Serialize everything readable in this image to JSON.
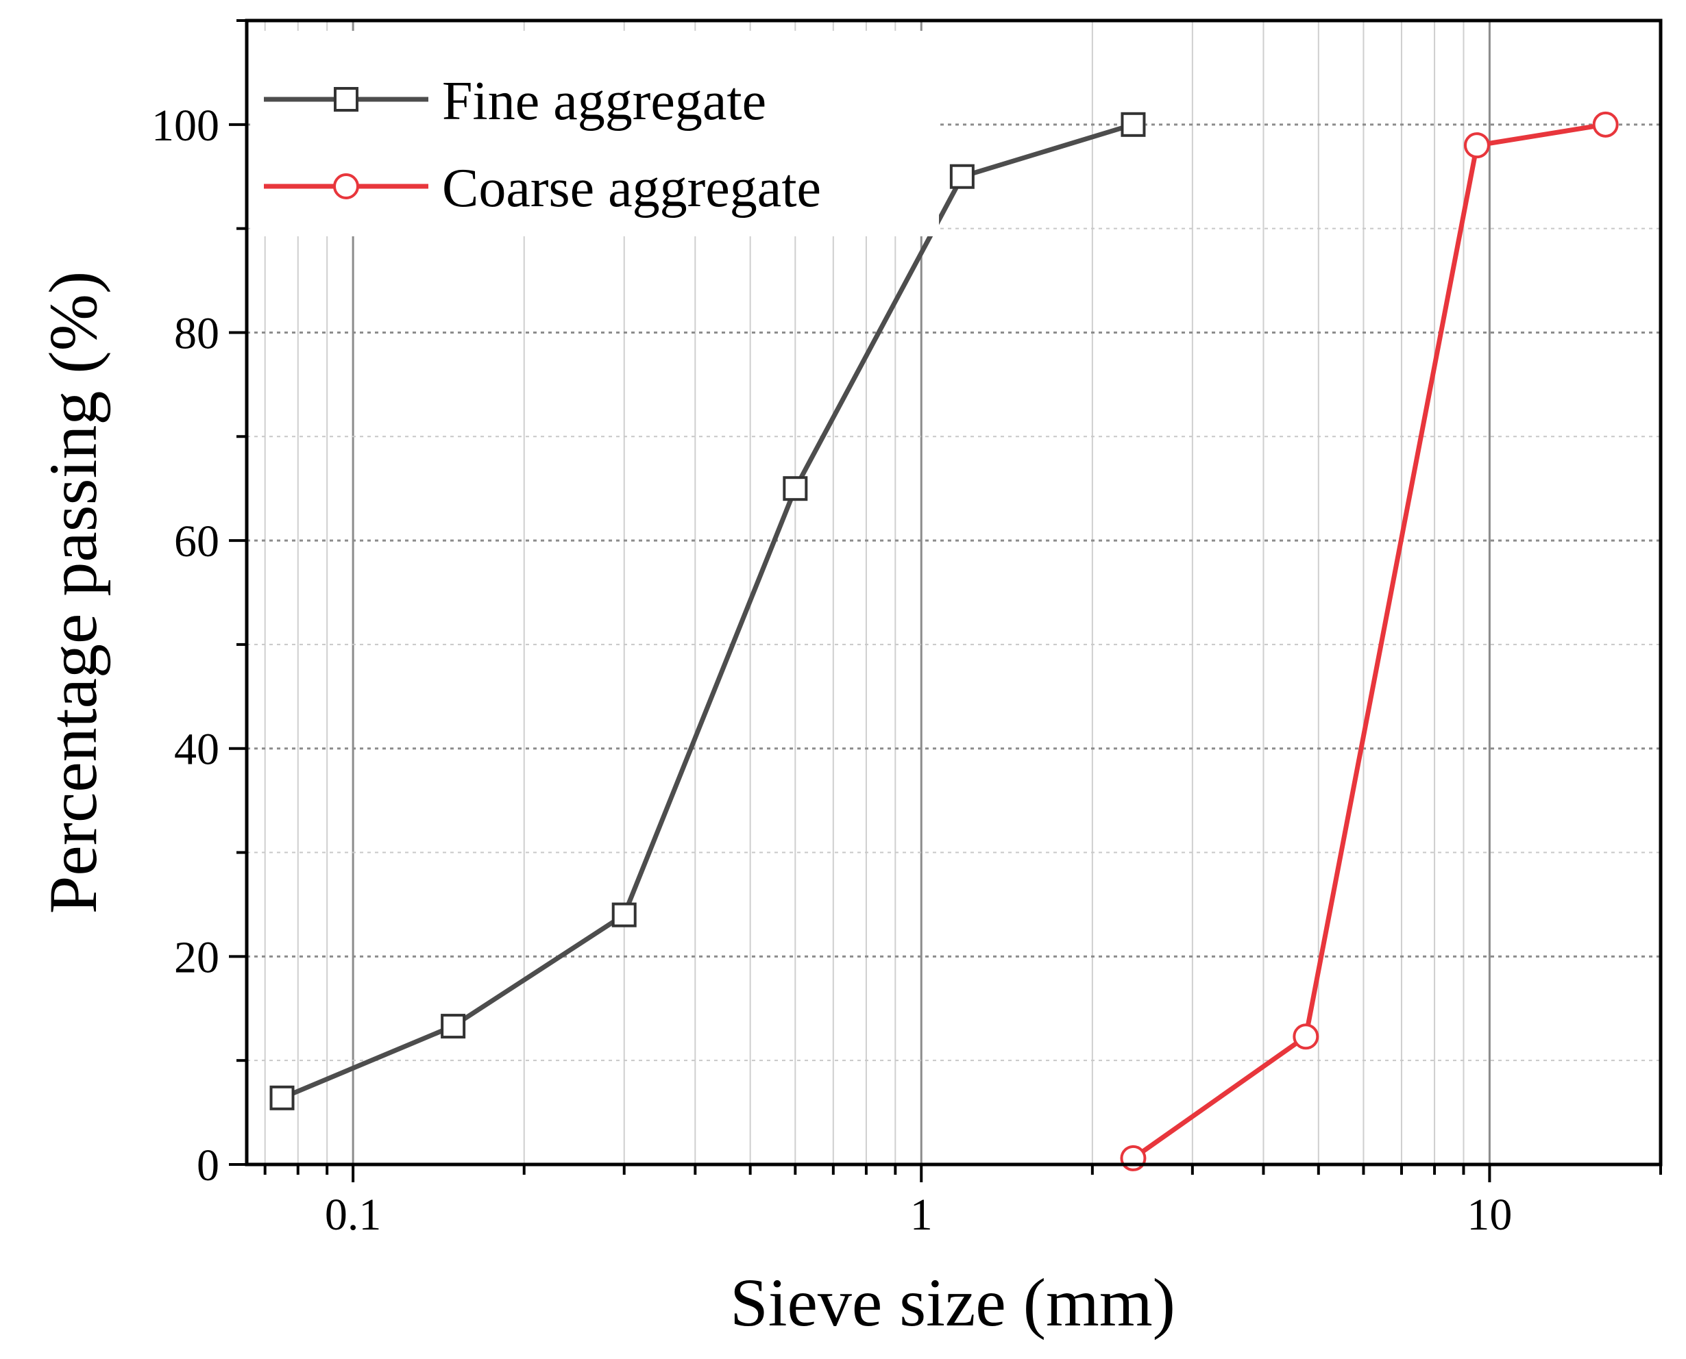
{
  "chart_data": {
    "type": "line",
    "xlabel": "Sieve size (mm)",
    "ylabel": "Percentage passing (%)",
    "x_scale": "log",
    "xlim": [
      0.065,
      20
    ],
    "ylim": [
      0,
      110
    ],
    "x_ticks": [
      {
        "value": 0.1,
        "label": "0.1"
      },
      {
        "value": 1,
        "label": "1"
      },
      {
        "value": 10,
        "label": "10"
      }
    ],
    "y_ticks": [
      {
        "value": 0,
        "label": "0"
      },
      {
        "value": 20,
        "label": "20"
      },
      {
        "value": 40,
        "label": "40"
      },
      {
        "value": 60,
        "label": "60"
      },
      {
        "value": 80,
        "label": "80"
      },
      {
        "value": 100,
        "label": "100"
      }
    ],
    "grid": true,
    "legend_position": "top-left",
    "series": [
      {
        "name": "Fine aggregate",
        "color": "#4d4d4d",
        "marker": "square",
        "x": [
          0.075,
          0.15,
          0.3,
          0.6,
          1.18,
          2.36
        ],
        "y": [
          6.4,
          13.3,
          24,
          65,
          95,
          100
        ]
      },
      {
        "name": "Coarse aggregate",
        "color": "#e8363c",
        "marker": "circle",
        "x": [
          2.36,
          4.75,
          9.5,
          16
        ],
        "y": [
          0.6,
          12.3,
          98,
          100
        ]
      }
    ]
  }
}
